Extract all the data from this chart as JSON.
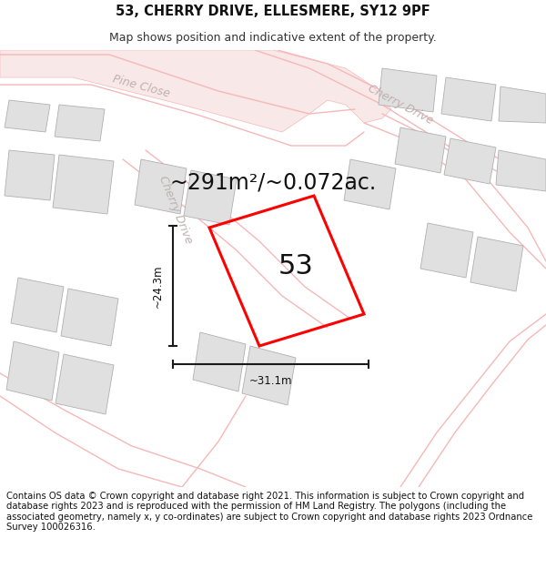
{
  "title_line1": "53, CHERRY DRIVE, ELLESMERE, SY12 9PF",
  "title_line2": "Map shows position and indicative extent of the property.",
  "footer_text": "Contains OS data © Crown copyright and database right 2021. This information is subject to Crown copyright and database rights 2023 and is reproduced with the permission of HM Land Registry. The polygons (including the associated geometry, namely x, y co-ordinates) are subject to Crown copyright and database rights 2023 Ordnance Survey 100026316.",
  "area_label": "~291m²/~0.072ac.",
  "number_label": "53",
  "dim_width": "~31.1m",
  "dim_height": "~24.3m",
  "road_label_pine": "Pine Close",
  "road_label_cherry_top": "Cherry Drive",
  "road_label_cherry_mid": "Cherry Drive",
  "bg_color": "#ffffff",
  "map_bg": "#efefef",
  "plot_color": "#ff0000",
  "building_fill": "#e0e0e0",
  "building_edge": "#b0b0b0",
  "road_line_color": "#f5b8b8",
  "road_area_color": "#f9e8e8",
  "dim_line_color": "#1a1a1a",
  "road_label_color": "#c0b0b0",
  "title_fontsize": 10.5,
  "subtitle_fontsize": 9,
  "footer_fontsize": 7.2,
  "area_fontsize": 17,
  "number_fontsize": 22,
  "dim_fontsize": 8.5,
  "road_fontsize": 9
}
